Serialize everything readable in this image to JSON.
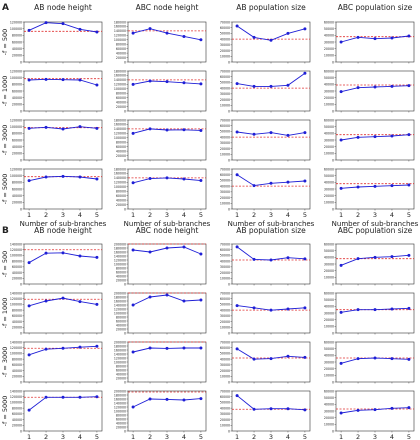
{
  "figure": {
    "panel_labels": [
      "A",
      "B"
    ],
    "column_titles": [
      "AB node height",
      "ABC node height",
      "AB population size",
      "ABC population size"
    ],
    "row_labels": [
      "-f = 500",
      "-f = 1000",
      "-f = 3000",
      "-f = 5000"
    ],
    "xlabel": "Number of sub-branches",
    "x_ticks": [
      "1",
      "2",
      "3",
      "4",
      "5"
    ]
  },
  "chart_data": [
    {
      "panel": "A",
      "type": "line",
      "x": [
        1,
        2,
        3,
        4,
        5
      ],
      "subplots": [
        {
          "row": 0,
          "col": 0,
          "ylim": [
            0,
            120000
          ],
          "yticks": [
            0,
            20000,
            40000,
            60000,
            80000,
            100000,
            120000
          ],
          "values": [
            95000,
            118000,
            115000,
            98000,
            90000
          ],
          "ref": 92000
        },
        {
          "row": 0,
          "col": 1,
          "ylim": [
            0,
            180000
          ],
          "yticks": [
            0,
            20000,
            40000,
            60000,
            80000,
            100000,
            120000,
            140000,
            160000,
            180000
          ],
          "values": [
            130000,
            150000,
            130000,
            115000,
            100000
          ],
          "ref": 140000
        },
        {
          "row": 0,
          "col": 2,
          "ylim": [
            0,
            70000
          ],
          "yticks": [
            0,
            10000,
            20000,
            30000,
            40000,
            50000,
            60000,
            70000
          ],
          "values": [
            63000,
            43000,
            38000,
            50000,
            58000
          ],
          "ref": 40000
        },
        {
          "row": 0,
          "col": 3,
          "ylim": [
            0,
            60000
          ],
          "yticks": [
            0,
            10000,
            20000,
            30000,
            40000,
            50000,
            60000
          ],
          "values": [
            30000,
            37000,
            35000,
            36000,
            39000
          ],
          "ref": 38000
        },
        {
          "row": 1,
          "col": 0,
          "ylim": [
            0,
            120000
          ],
          "yticks": [
            0,
            20000,
            40000,
            60000,
            80000,
            100000,
            120000
          ],
          "values": [
            93000,
            95000,
            94000,
            93000,
            78000
          ],
          "ref": 97000
        },
        {
          "row": 1,
          "col": 1,
          "ylim": [
            0,
            180000
          ],
          "yticks": [
            0,
            20000,
            40000,
            60000,
            80000,
            100000,
            120000,
            140000,
            160000,
            180000
          ],
          "values": [
            120000,
            135000,
            132000,
            127000,
            122000
          ],
          "ref": 140000
        },
        {
          "row": 1,
          "col": 2,
          "ylim": [
            0,
            70000
          ],
          "yticks": [
            0,
            10000,
            20000,
            30000,
            40000,
            50000,
            60000,
            70000
          ],
          "values": [
            48000,
            43000,
            43000,
            45000,
            66000
          ],
          "ref": 40000
        },
        {
          "row": 1,
          "col": 3,
          "ylim": [
            0,
            60000
          ],
          "yticks": [
            0,
            10000,
            20000,
            30000,
            40000,
            50000,
            60000
          ],
          "values": [
            29000,
            35000,
            36000,
            37000,
            38000
          ],
          "ref": 39000
        },
        {
          "row": 2,
          "col": 0,
          "ylim": [
            0,
            120000
          ],
          "yticks": [
            0,
            20000,
            40000,
            60000,
            80000,
            100000,
            120000
          ],
          "values": [
            95000,
            98000,
            93000,
            100000,
            95000
          ],
          "ref": 97000
        },
        {
          "row": 2,
          "col": 1,
          "ylim": [
            0,
            180000
          ],
          "yticks": [
            0,
            20000,
            40000,
            60000,
            80000,
            100000,
            120000,
            140000,
            160000,
            180000
          ],
          "values": [
            120000,
            140000,
            135000,
            136000,
            133000
          ],
          "ref": 140000
        },
        {
          "row": 2,
          "col": 2,
          "ylim": [
            0,
            70000
          ],
          "yticks": [
            0,
            10000,
            20000,
            30000,
            40000,
            50000,
            60000,
            70000
          ],
          "values": [
            49000,
            45000,
            48000,
            43000,
            48000
          ],
          "ref": 40000
        },
        {
          "row": 2,
          "col": 3,
          "ylim": [
            0,
            60000
          ],
          "yticks": [
            0,
            10000,
            20000,
            30000,
            40000,
            50000,
            60000
          ],
          "values": [
            30000,
            34000,
            35000,
            36000,
            38000
          ],
          "ref": 38000
        },
        {
          "row": 3,
          "col": 0,
          "ylim": [
            0,
            120000
          ],
          "yticks": [
            0,
            20000,
            40000,
            60000,
            80000,
            100000,
            120000
          ],
          "values": [
            85000,
            96000,
            98000,
            96000,
            90000
          ],
          "ref": 97000
        },
        {
          "row": 3,
          "col": 1,
          "ylim": [
            0,
            180000
          ],
          "yticks": [
            0,
            20000,
            40000,
            60000,
            80000,
            100000,
            120000,
            140000,
            160000,
            180000
          ],
          "values": [
            118000,
            137000,
            140000,
            135000,
            128000
          ],
          "ref": 140000
        },
        {
          "row": 3,
          "col": 2,
          "ylim": [
            0,
            70000
          ],
          "yticks": [
            0,
            10000,
            20000,
            30000,
            40000,
            50000,
            60000,
            70000
          ],
          "values": [
            60000,
            41000,
            45000,
            47000,
            49000
          ],
          "ref": 40000
        },
        {
          "row": 3,
          "col": 3,
          "ylim": [
            0,
            60000
          ],
          "yticks": [
            0,
            10000,
            20000,
            30000,
            40000,
            50000,
            60000
          ],
          "values": [
            31000,
            33000,
            34000,
            35000,
            36000
          ],
          "ref": 38000
        }
      ]
    },
    {
      "panel": "B",
      "type": "line",
      "x": [
        1,
        2,
        3,
        4,
        5
      ],
      "subplots": [
        {
          "row": 0,
          "col": 0,
          "ylim": [
            0,
            140000
          ],
          "yticks": [
            0,
            20000,
            40000,
            60000,
            80000,
            100000,
            120000,
            140000
          ],
          "values": [
            75000,
            108000,
            109000,
            98000,
            93000
          ],
          "ref": 120000
        },
        {
          "row": 0,
          "col": 1,
          "ylim": [
            0,
            200000
          ],
          "yticks": [
            0,
            20000,
            40000,
            60000,
            80000,
            100000,
            120000,
            140000,
            160000,
            180000,
            200000
          ],
          "values": [
            170000,
            160000,
            180000,
            185000,
            150000
          ],
          "ref": 200000
        },
        {
          "row": 0,
          "col": 2,
          "ylim": [
            0,
            70000
          ],
          "yticks": [
            0,
            10000,
            20000,
            30000,
            40000,
            50000,
            60000,
            70000
          ],
          "values": [
            65000,
            43000,
            42000,
            46000,
            44000
          ],
          "ref": 42000
        },
        {
          "row": 0,
          "col": 3,
          "ylim": [
            0,
            60000
          ],
          "yticks": [
            0,
            10000,
            20000,
            30000,
            40000,
            50000,
            60000
          ],
          "values": [
            28000,
            38000,
            40000,
            41000,
            43000
          ],
          "ref": 38000
        },
        {
          "row": 1,
          "col": 0,
          "ylim": [
            0,
            140000
          ],
          "yticks": [
            0,
            20000,
            40000,
            60000,
            80000,
            100000,
            120000,
            140000
          ],
          "values": [
            95000,
            112000,
            122000,
            110000,
            100000
          ],
          "ref": 118000
        },
        {
          "row": 1,
          "col": 1,
          "ylim": [
            0,
            200000
          ],
          "yticks": [
            0,
            20000,
            40000,
            60000,
            80000,
            100000,
            120000,
            140000,
            160000,
            180000,
            200000
          ],
          "values": [
            140000,
            180000,
            190000,
            160000,
            165000
          ],
          "ref": 200000
        },
        {
          "row": 1,
          "col": 2,
          "ylim": [
            0,
            70000
          ],
          "yticks": [
            0,
            10000,
            20000,
            30000,
            40000,
            50000,
            60000,
            70000
          ],
          "values": [
            48000,
            44000,
            40000,
            42000,
            44000
          ],
          "ref": 40000
        },
        {
          "row": 1,
          "col": 3,
          "ylim": [
            0,
            60000
          ],
          "yticks": [
            0,
            10000,
            20000,
            30000,
            40000,
            50000,
            60000
          ],
          "values": [
            31000,
            35000,
            35000,
            36000,
            37000
          ],
          "ref": 35000
        },
        {
          "row": 2,
          "col": 0,
          "ylim": [
            0,
            140000
          ],
          "yticks": [
            0,
            20000,
            40000,
            60000,
            80000,
            100000,
            120000,
            140000
          ],
          "values": [
            95000,
            115000,
            118000,
            122000,
            125000
          ],
          "ref": 118000
        },
        {
          "row": 2,
          "col": 1,
          "ylim": [
            0,
            200000
          ],
          "yticks": [
            0,
            20000,
            40000,
            60000,
            80000,
            100000,
            120000,
            140000,
            160000,
            180000,
            200000
          ],
          "values": [
            150000,
            170000,
            168000,
            170000,
            170000
          ],
          "ref": 200000
        },
        {
          "row": 2,
          "col": 2,
          "ylim": [
            0,
            70000
          ],
          "yticks": [
            0,
            10000,
            20000,
            30000,
            40000,
            50000,
            60000,
            70000
          ],
          "values": [
            58000,
            40000,
            41000,
            45000,
            43000
          ],
          "ref": 42000
        },
        {
          "row": 2,
          "col": 3,
          "ylim": [
            0,
            60000
          ],
          "yticks": [
            0,
            10000,
            20000,
            30000,
            40000,
            50000,
            60000
          ],
          "values": [
            28000,
            35000,
            36000,
            35000,
            34000
          ],
          "ref": 36000
        },
        {
          "row": 3,
          "col": 0,
          "ylim": [
            0,
            140000
          ],
          "yticks": [
            0,
            20000,
            40000,
            60000,
            80000,
            100000,
            120000,
            140000
          ],
          "values": [
            73000,
            118000,
            118000,
            118000,
            120000
          ],
          "ref": 118000
        },
        {
          "row": 3,
          "col": 1,
          "ylim": [
            0,
            200000
          ],
          "yticks": [
            0,
            20000,
            40000,
            60000,
            80000,
            100000,
            120000,
            140000,
            160000,
            180000,
            200000
          ],
          "values": [
            120000,
            160000,
            158000,
            155000,
            162000
          ],
          "ref": 195000
        },
        {
          "row": 3,
          "col": 2,
          "ylim": [
            0,
            70000
          ],
          "yticks": [
            0,
            10000,
            20000,
            30000,
            40000,
            50000,
            60000,
            70000
          ],
          "values": [
            62000,
            38000,
            39000,
            39000,
            37000
          ],
          "ref": 38000
        },
        {
          "row": 3,
          "col": 3,
          "ylim": [
            0,
            60000
          ],
          "yticks": [
            0,
            10000,
            20000,
            30000,
            40000,
            50000,
            60000
          ],
          "values": [
            27000,
            31000,
            32000,
            34000,
            35000
          ],
          "ref": 33000
        }
      ]
    }
  ],
  "colors": {
    "line": "#1f1fd6",
    "marker": "#1f1fd6",
    "reference": "#e03030",
    "axis": "#333333"
  }
}
